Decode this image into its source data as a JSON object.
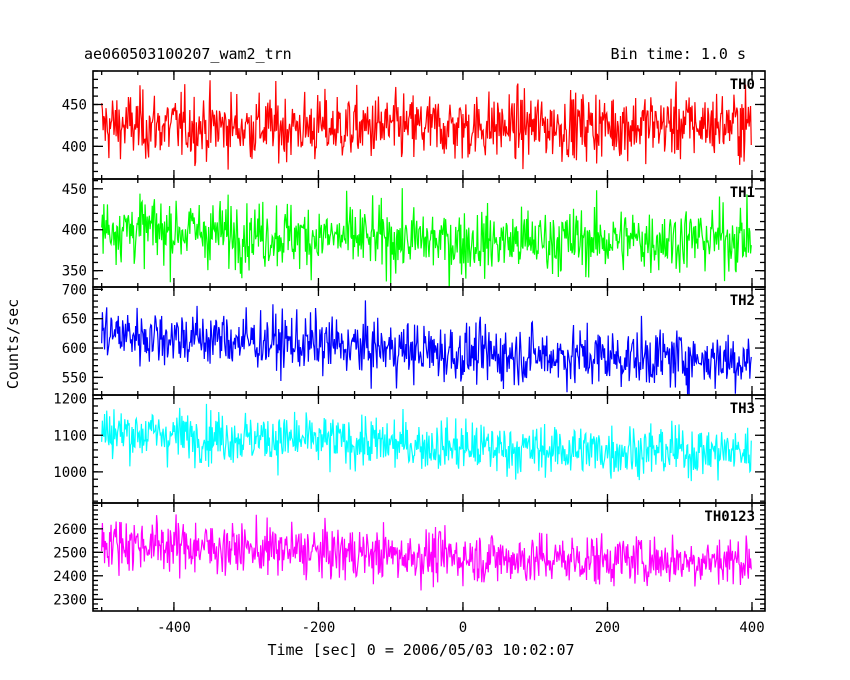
{
  "chart_data": {
    "type": "line",
    "title": "ae060503100207_wam2_trn",
    "subtitle": "Bin time: 1.0 s",
    "xlabel": "Time [sec] 0 = 2006/05/03 10:02:07",
    "ylabel": "Counts/sec",
    "xlim": [
      -512,
      418
    ],
    "x_ticks": [
      -400,
      -200,
      0,
      200,
      400
    ],
    "x_range_data": [
      -500,
      399
    ],
    "grid": false,
    "panels": [
      {
        "name": "TH0",
        "color": "#ff0000",
        "ylim": [
          361,
          490
        ],
        "y_ticks": [
          400,
          450
        ],
        "trend": [
          [
            -500,
            425
          ],
          [
            -150,
            422
          ],
          [
            100,
            424
          ],
          [
            399,
            427
          ]
        ],
        "noise": 20
      },
      {
        "name": "TH1",
        "color": "#00ff00",
        "ylim": [
          330,
          462
        ],
        "y_ticks": [
          350,
          400,
          450
        ],
        "trend": [
          [
            -500,
            403
          ],
          [
            -300,
            395
          ],
          [
            0,
            385
          ],
          [
            399,
            390
          ]
        ],
        "noise": 20
      },
      {
        "name": "TH2",
        "color": "#0000ff",
        "ylim": [
          520,
          704
        ],
        "y_ticks": [
          550,
          600,
          650,
          700
        ],
        "trend": [
          [
            -500,
            625
          ],
          [
            -250,
            610
          ],
          [
            0,
            590
          ],
          [
            399,
            580
          ]
        ],
        "noise": 25
      },
      {
        "name": "TH3",
        "color": "#00ffff",
        "ylim": [
          915,
          1210
        ],
        "y_ticks": [
          1000,
          1100,
          1200
        ],
        "trend": [
          [
            -500,
            1110
          ],
          [
            -200,
            1085
          ],
          [
            100,
            1060
          ],
          [
            399,
            1055
          ]
        ],
        "noise": 35
      },
      {
        "name": "TH0123",
        "color": "#ff00ff",
        "ylim": [
          2250,
          2710
        ],
        "y_ticks": [
          2300,
          2400,
          2500,
          2600
        ],
        "trend": [
          [
            -500,
            2545
          ],
          [
            -200,
            2500
          ],
          [
            100,
            2470
          ],
          [
            399,
            2465
          ]
        ],
        "noise": 55
      }
    ]
  }
}
